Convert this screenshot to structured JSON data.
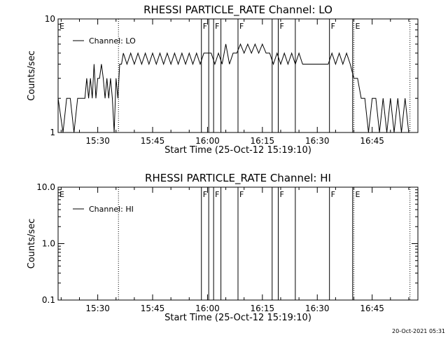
{
  "chart_data": [
    {
      "type": "line",
      "title": "RHESSI PARTICLE_RATE Channel: LO",
      "xlabel": "Start Time (25-Oct-12 15:19:10)",
      "ylabel": "Counts/sec",
      "yscale": "log",
      "xlim": [
        "15:19:10",
        "16:57:30"
      ],
      "ylim": [
        1,
        10
      ],
      "x_ticks": [
        "15:30",
        "15:45",
        "16:00",
        "16:15",
        "16:30",
        "16:45"
      ],
      "y_ticks": [
        "1",
        "10"
      ],
      "legend": {
        "placement": "top-left",
        "entries": [
          "Channel: LO"
        ]
      },
      "series": [
        {
          "name": "Channel: LO",
          "x": [
            "15:19:10",
            "15:20:30",
            "15:21:30",
            "15:22:30",
            "15:23:30",
            "15:24:30",
            "15:25:30",
            "15:26:30",
            "15:27:00",
            "15:27:30",
            "15:28:00",
            "15:28:30",
            "15:29:00",
            "15:29:30",
            "15:30:00",
            "15:30:30",
            "15:31:00",
            "15:31:30",
            "15:32:00",
            "15:32:30",
            "15:33:00",
            "15:33:30",
            "15:34:00",
            "15:34:30",
            "15:35:00",
            "15:35:30",
            "15:36:00",
            "15:36:30",
            "15:37:00",
            "15:38:00",
            "15:39:00",
            "15:40:00",
            "15:41:00",
            "15:42:00",
            "15:43:00",
            "15:44:00",
            "15:45:00",
            "15:46:00",
            "15:47:00",
            "15:48:00",
            "15:49:00",
            "15:50:00",
            "15:51:00",
            "15:52:00",
            "15:53:00",
            "15:54:00",
            "15:55:00",
            "15:56:00",
            "15:57:00",
            "15:58:00",
            "15:59:00",
            "16:00:00",
            "16:01:00",
            "16:02:00",
            "16:03:00",
            "16:04:00",
            "16:05:00",
            "16:06:00",
            "16:07:00",
            "16:08:00",
            "16:09:00",
            "16:10:00",
            "16:11:00",
            "16:12:00",
            "16:13:00",
            "16:14:00",
            "16:15:00",
            "16:16:00",
            "16:17:00",
            "16:18:00",
            "16:19:00",
            "16:20:00",
            "16:21:00",
            "16:22:00",
            "16:23:00",
            "16:24:00",
            "16:25:00",
            "16:26:00",
            "16:27:00",
            "16:28:00",
            "16:29:00",
            "16:30:00",
            "16:31:00",
            "16:32:00",
            "16:33:00",
            "16:34:00",
            "16:35:00",
            "16:36:00",
            "16:37:00",
            "16:38:00",
            "16:39:00",
            "16:40:00",
            "16:41:00",
            "16:42:00",
            "16:43:00",
            "16:44:00",
            "16:45:00",
            "16:46:00",
            "16:47:00",
            "16:48:00",
            "16:49:00",
            "16:50:00",
            "16:51:00",
            "16:52:00",
            "16:53:00",
            "16:54:00",
            "16:55:00"
          ],
          "values": [
            2,
            1,
            2,
            2,
            1,
            2,
            2,
            2,
            3,
            2,
            3,
            2,
            4,
            2,
            3,
            3,
            4,
            3,
            2,
            3,
            2,
            3,
            2,
            1,
            3,
            2,
            4,
            4,
            5,
            4,
            5,
            4,
            5,
            4,
            5,
            4,
            5,
            4,
            5,
            4,
            5,
            4,
            5,
            4,
            5,
            4,
            5,
            4,
            5,
            4,
            5,
            5,
            5,
            4,
            5,
            4,
            6,
            4,
            5,
            5,
            6,
            5,
            6,
            5,
            6,
            5,
            6,
            5,
            5,
            4,
            5,
            4,
            5,
            4,
            5,
            4,
            5,
            4,
            4,
            4,
            4,
            4,
            4,
            4,
            4,
            5,
            4,
            5,
            4,
            5,
            4,
            3,
            3,
            2,
            2,
            1,
            2,
            2,
            1,
            2,
            1,
            2,
            1,
            2,
            1,
            2,
            1
          ]
        }
      ],
      "markers": [
        {
          "label": "E",
          "time": "15:19:10",
          "style": "solid"
        },
        {
          "label": "",
          "time": "15:35:40",
          "style": "dotted"
        },
        {
          "label": "F",
          "time": "15:58:20",
          "style": "solid"
        },
        {
          "label": "",
          "time": "16:00:20",
          "style": "solid"
        },
        {
          "label": "F",
          "time": "16:01:40",
          "style": "solid"
        },
        {
          "label": "",
          "time": "16:03:40",
          "style": "solid"
        },
        {
          "label": "F",
          "time": "16:08:20",
          "style": "solid"
        },
        {
          "label": "",
          "time": "16:17:40",
          "style": "solid"
        },
        {
          "label": "F",
          "time": "16:19:20",
          "style": "solid"
        },
        {
          "label": "",
          "time": "16:24:00",
          "style": "solid"
        },
        {
          "label": "F",
          "time": "16:33:20",
          "style": "solid"
        },
        {
          "label": "",
          "time": "16:39:40",
          "style": "solid"
        },
        {
          "label": "E",
          "time": "16:40:00",
          "style": "dotted"
        },
        {
          "label": "",
          "time": "16:55:20",
          "style": "dotted"
        }
      ]
    },
    {
      "type": "line",
      "title": "RHESSI PARTICLE_RATE Channel: HI",
      "xlabel": "Start Time (25-Oct-12 15:19:10)",
      "ylabel": "Counts/sec",
      "yscale": "log",
      "xlim": [
        "15:19:10",
        "16:57:30"
      ],
      "ylim": [
        0.1,
        10.0
      ],
      "x_ticks": [
        "15:30",
        "15:45",
        "16:00",
        "16:15",
        "16:30",
        "16:45"
      ],
      "y_ticks": [
        "0.1",
        "1.0",
        "10.0"
      ],
      "legend": {
        "placement": "top-left",
        "entries": [
          "Channel: HI"
        ]
      },
      "series": [
        {
          "name": "Channel: HI",
          "x": [],
          "values": []
        }
      ],
      "markers": [
        {
          "label": "E",
          "time": "15:19:10",
          "style": "solid"
        },
        {
          "label": "",
          "time": "15:35:40",
          "style": "dotted"
        },
        {
          "label": "F",
          "time": "15:58:20",
          "style": "solid"
        },
        {
          "label": "",
          "time": "16:00:20",
          "style": "solid"
        },
        {
          "label": "F",
          "time": "16:01:40",
          "style": "solid"
        },
        {
          "label": "",
          "time": "16:03:40",
          "style": "solid"
        },
        {
          "label": "F",
          "time": "16:08:20",
          "style": "solid"
        },
        {
          "label": "",
          "time": "16:17:40",
          "style": "solid"
        },
        {
          "label": "F",
          "time": "16:19:20",
          "style": "solid"
        },
        {
          "label": "",
          "time": "16:24:00",
          "style": "solid"
        },
        {
          "label": "F",
          "time": "16:33:20",
          "style": "solid"
        },
        {
          "label": "",
          "time": "16:39:40",
          "style": "solid"
        },
        {
          "label": "E",
          "time": "16:40:00",
          "style": "dotted"
        },
        {
          "label": "",
          "time": "16:55:20",
          "style": "dotted"
        }
      ]
    }
  ],
  "footer": {
    "timestamp": "20-Oct-2021 05:31"
  },
  "colors": {
    "background": "#ffffff",
    "foreground": "#000000"
  }
}
